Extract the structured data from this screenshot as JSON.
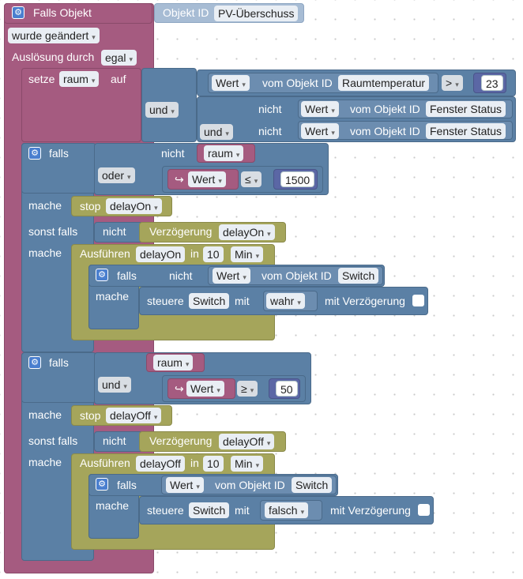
{
  "trigger": {
    "title": "Falls Objekt",
    "object_id_label": "Objekt ID",
    "object_id_value": "PV-Überschuss",
    "condition": "wurde geändert",
    "trigger_label": "Auslösung durch",
    "trigger_value": "egal"
  },
  "setvar": {
    "setze": "setze",
    "var": "raum",
    "auf": "auf",
    "und1": "und",
    "und2": "und",
    "wert": "Wert",
    "vom_objekt": "vom Objekt ID",
    "obj1": "Raumtemperatur",
    "op1": ">",
    "val1": "23",
    "nicht": "nicht",
    "obj2": "Fenster Status",
    "obj3": "Fenster Status"
  },
  "if1": {
    "falls": "falls",
    "nicht": "nicht",
    "var": "raum",
    "oder": "oder",
    "wert": "Wert",
    "arrow": "↪",
    "op": "≤",
    "val": "1500",
    "mache": "mache",
    "stop": "stop",
    "timer": "delayOn",
    "sonst_falls": "sonst falls",
    "verzoegerung": "Verzögerung",
    "ausfuehren": "Ausführen",
    "in": "in",
    "count": "10",
    "unit": "Min",
    "inner_falls": "falls",
    "inner_nicht": "nicht",
    "inner_wert": "Wert",
    "inner_vom": "vom Objekt ID",
    "inner_obj": "Switch",
    "steuere": "steuere",
    "steuere_obj": "Switch",
    "mit": "mit",
    "bool": "wahr",
    "mit_verz": "mit Verzögerung"
  },
  "if2": {
    "falls": "falls",
    "var": "raum",
    "und": "und",
    "wert": "Wert",
    "arrow": "↪",
    "op": "≥",
    "val": "50",
    "mache": "mache",
    "stop": "stop",
    "timer": "delayOff",
    "sonst_falls": "sonst falls",
    "nicht": "nicht",
    "verzoegerung": "Verzögerung",
    "ausfuehren": "Ausführen",
    "in": "in",
    "count": "10",
    "unit": "Min",
    "inner_falls": "falls",
    "inner_wert": "Wert",
    "inner_vom": "vom Objekt ID",
    "inner_obj": "Switch",
    "steuere": "steuere",
    "steuere_obj": "Switch",
    "mit": "mit",
    "bool": "falsch",
    "mit_verz": "mit Verzögerung"
  },
  "colors": {
    "trigger": "#a55b80",
    "logic": "#5b80a5",
    "timer": "#a5a55b",
    "math": "#5b67a5"
  }
}
